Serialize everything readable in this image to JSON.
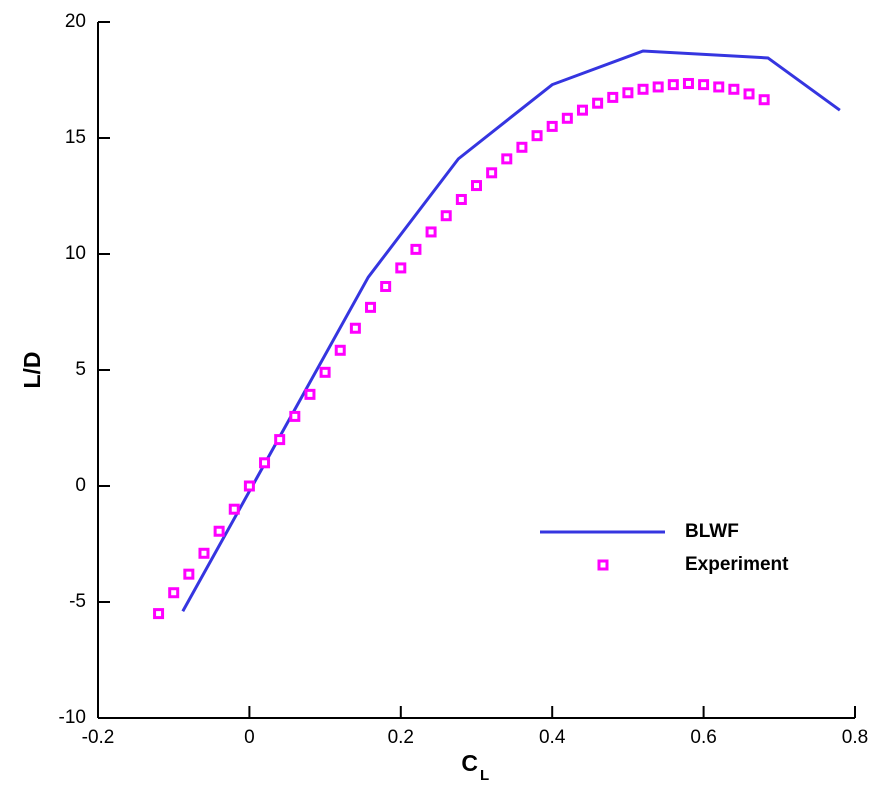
{
  "chart_data": {
    "type": "line",
    "x_label": "C",
    "x_label_sub": "L",
    "y_label": "L/D",
    "xlim": [
      -0.2,
      0.8
    ],
    "xticks": [
      -0.2,
      0,
      0.2,
      0.4,
      0.6,
      0.8
    ],
    "ylim": [
      -10,
      20
    ],
    "yticks": [
      -10,
      -5,
      0,
      5,
      10,
      15,
      20
    ],
    "legend": "lower-right",
    "series": [
      {
        "name": "BLWF",
        "color": "#3535e0",
        "style": "line",
        "x": [
          -0.088,
          0.157,
          0.276,
          0.4,
          0.52,
          0.685,
          0.78
        ],
        "values": [
          -5.4,
          9.0,
          14.1,
          17.3,
          18.75,
          18.45,
          16.2
        ]
      },
      {
        "name": "Experiment",
        "color": "#ff00ff",
        "style": "marker",
        "x": [
          -0.12,
          -0.1,
          -0.08,
          -0.06,
          -0.04,
          -0.02,
          0,
          0.02,
          0.04,
          0.06,
          0.08,
          0.1,
          0.12,
          0.14,
          0.16,
          0.18,
          0.2,
          0.22,
          0.24,
          0.26,
          0.28,
          0.3,
          0.32,
          0.34,
          0.36,
          0.38,
          0.4,
          0.42,
          0.44,
          0.46,
          0.48,
          0.5,
          0.52,
          0.54,
          0.56,
          0.58,
          0.6,
          0.62,
          0.64,
          0.66,
          0.68
        ],
        "values": [
          -5.5,
          -4.6,
          -3.8,
          -2.9,
          -1.95,
          -1.0,
          0,
          1.0,
          2.0,
          3.0,
          3.95,
          4.9,
          5.85,
          6.8,
          7.7,
          8.6,
          9.4,
          10.2,
          10.95,
          11.65,
          12.35,
          12.95,
          13.5,
          14.1,
          14.6,
          15.1,
          15.5,
          15.85,
          16.2,
          16.5,
          16.75,
          16.95,
          17.1,
          17.2,
          17.3,
          17.35,
          17.3,
          17.2,
          17.1,
          16.9,
          16.65
        ]
      }
    ]
  }
}
